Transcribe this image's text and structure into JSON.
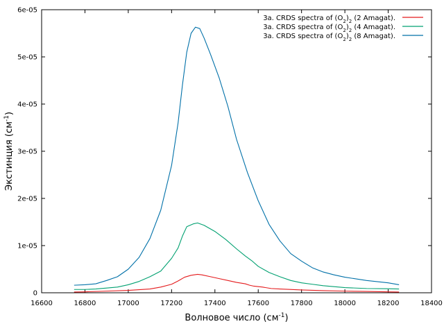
{
  "chart_data": {
    "type": "line",
    "xlabel": "Волновое число (см",
    "xlabel_sup": "-1",
    "xlabel_end": ")",
    "ylabel": "Экстинция (см",
    "ylabel_sup": "-1",
    "ylabel_end": ")",
    "xlim": [
      16600,
      18400
    ],
    "ylim": [
      0,
      6e-05
    ],
    "xticks": [
      16600,
      16800,
      17000,
      17200,
      17400,
      17600,
      17800,
      18000,
      18200,
      18400
    ],
    "xtick_labels": [
      "16600",
      "16800",
      "17000",
      "17200",
      "17400",
      "17600",
      "17800",
      "18000",
      "18200",
      "18400"
    ],
    "yticks": [
      0,
      1e-05,
      2e-05,
      3e-05,
      4e-05,
      5e-05,
      6e-05
    ],
    "ytick_labels": [
      "0",
      "1e-05",
      "2e-05",
      "3e-05",
      "4e-05",
      "5e-05",
      "6e-05"
    ],
    "grid": false,
    "legend_position": "top-right",
    "series": [
      {
        "legend_pre": "3a. CRDS spectra of (O",
        "legend_sub1": "2",
        "legend_mid": ")",
        "legend_sub2": "2",
        "legend_post": " (2 Amagat).",
        "color": "#e41a1c",
        "points": [
          [
            16750,
            1.5e-07
          ],
          [
            16800,
            2e-07
          ],
          [
            16900,
            3.5e-07
          ],
          [
            17000,
            5e-07
          ],
          [
            17050,
            6.5e-07
          ],
          [
            17100,
            8e-07
          ],
          [
            17150,
            1.2e-06
          ],
          [
            17200,
            1.8e-06
          ],
          [
            17230,
            2.5e-06
          ],
          [
            17260,
            3.3e-06
          ],
          [
            17290,
            3.7e-06
          ],
          [
            17320,
            3.9e-06
          ],
          [
            17340,
            3.8e-06
          ],
          [
            17380,
            3.4e-06
          ],
          [
            17420,
            3e-06
          ],
          [
            17460,
            2.6e-06
          ],
          [
            17500,
            2.2e-06
          ],
          [
            17540,
            1.9e-06
          ],
          [
            17560,
            1.6e-06
          ],
          [
            17580,
            1.4e-06
          ],
          [
            17620,
            1.2e-06
          ],
          [
            17660,
            9e-07
          ],
          [
            17700,
            8e-07
          ],
          [
            17800,
            6e-07
          ],
          [
            17900,
            4.5e-07
          ],
          [
            18000,
            3.5e-07
          ],
          [
            18100,
            2.8e-07
          ],
          [
            18200,
            2e-07
          ],
          [
            18250,
            1.5e-07
          ]
        ]
      },
      {
        "legend_pre": "3a. CRDS spectra of (O",
        "legend_sub1": "2",
        "legend_mid": ")",
        "legend_sub2": "2",
        "legend_post": " (4 Amagat).",
        "color": "#00a070",
        "points": [
          [
            16750,
            7e-07
          ],
          [
            16800,
            7e-07
          ],
          [
            16850,
            8e-07
          ],
          [
            16900,
            1e-06
          ],
          [
            16950,
            1.2e-06
          ],
          [
            17000,
            1.7e-06
          ],
          [
            17050,
            2.4e-06
          ],
          [
            17100,
            3.4e-06
          ],
          [
            17150,
            4.6e-06
          ],
          [
            17200,
            7.3e-06
          ],
          [
            17230,
            9.5e-06
          ],
          [
            17250,
            1.2e-05
          ],
          [
            17270,
            1.4e-05
          ],
          [
            17300,
            1.46e-05
          ],
          [
            17320,
            1.48e-05
          ],
          [
            17350,
            1.43e-05
          ],
          [
            17400,
            1.3e-05
          ],
          [
            17450,
            1.13e-05
          ],
          [
            17500,
            9.3e-06
          ],
          [
            17540,
            7.8e-06
          ],
          [
            17570,
            6.8e-06
          ],
          [
            17600,
            5.6e-06
          ],
          [
            17650,
            4.3e-06
          ],
          [
            17700,
            3.4e-06
          ],
          [
            17750,
            2.6e-06
          ],
          [
            17800,
            2.1e-06
          ],
          [
            17850,
            1.8e-06
          ],
          [
            17900,
            1.5e-06
          ],
          [
            17950,
            1.3e-06
          ],
          [
            18000,
            1.1e-06
          ],
          [
            18100,
            9e-07
          ],
          [
            18200,
            8.5e-07
          ],
          [
            18250,
            8e-07
          ]
        ]
      },
      {
        "legend_pre": "3a. CRDS spectra of (O",
        "legend_sub1": "2",
        "legend_mid": ")",
        "legend_sub2": "2",
        "legend_post": " (8 Amagat).",
        "color": "#0070a8",
        "points": [
          [
            16750,
            1.6e-06
          ],
          [
            16800,
            1.7e-06
          ],
          [
            16850,
            1.9e-06
          ],
          [
            16900,
            2.6e-06
          ],
          [
            16950,
            3.4e-06
          ],
          [
            17000,
            5e-06
          ],
          [
            17050,
            7.5e-06
          ],
          [
            17100,
            1.15e-05
          ],
          [
            17150,
            1.75e-05
          ],
          [
            17200,
            2.7e-05
          ],
          [
            17230,
            3.6e-05
          ],
          [
            17250,
            4.4e-05
          ],
          [
            17270,
            5.1e-05
          ],
          [
            17290,
            5.5e-05
          ],
          [
            17310,
            5.63e-05
          ],
          [
            17330,
            5.6e-05
          ],
          [
            17350,
            5.4e-05
          ],
          [
            17380,
            5.05e-05
          ],
          [
            17420,
            4.55e-05
          ],
          [
            17460,
            3.95e-05
          ],
          [
            17500,
            3.25e-05
          ],
          [
            17550,
            2.55e-05
          ],
          [
            17600,
            1.95e-05
          ],
          [
            17650,
            1.45e-05
          ],
          [
            17700,
            1.1e-05
          ],
          [
            17750,
            8.3e-06
          ],
          [
            17800,
            6.7e-06
          ],
          [
            17850,
            5.3e-06
          ],
          [
            17900,
            4.4e-06
          ],
          [
            17950,
            3.8e-06
          ],
          [
            18000,
            3.3e-06
          ],
          [
            18100,
            2.6e-06
          ],
          [
            18200,
            2.1e-06
          ],
          [
            18250,
            1.7e-06
          ]
        ]
      }
    ]
  }
}
